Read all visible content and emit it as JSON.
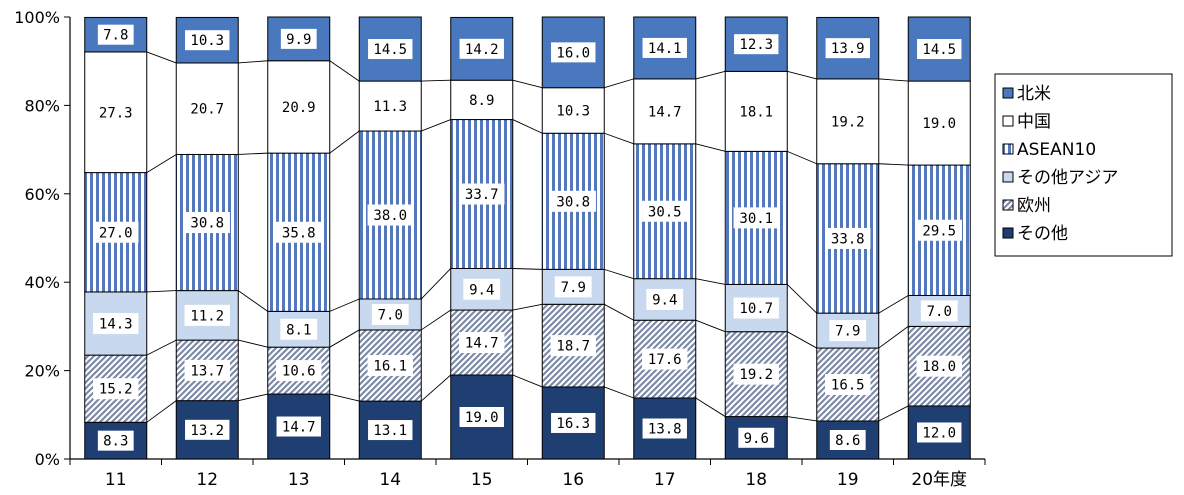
{
  "chart_data": {
    "type": "bar",
    "stacked": true,
    "percent": true,
    "categories": [
      "11",
      "12",
      "13",
      "14",
      "15",
      "16",
      "17",
      "18",
      "19",
      "20年度"
    ],
    "series": [
      {
        "name": "その他",
        "values": [
          8.3,
          13.2,
          14.7,
          13.1,
          19.0,
          16.3,
          13.8,
          9.6,
          8.6,
          12.0
        ],
        "labels": [
          "8.3",
          "13.2",
          "14.7",
          "13.1",
          "19.0",
          "16.3",
          "13.8",
          "9.6",
          "8.6",
          "12.0"
        ],
        "color": "#1f3f73",
        "pattern": "solid"
      },
      {
        "name": "欧州",
        "values": [
          15.2,
          13.7,
          10.6,
          16.1,
          14.7,
          18.7,
          17.6,
          19.2,
          16.5,
          18.0
        ],
        "labels": [
          "15.2",
          "13.7",
          "10.6",
          "16.1",
          "14.7",
          "18.7",
          "17.6",
          "19.2",
          "16.5",
          "18.0"
        ],
        "color": "#9aa6bd",
        "pattern": "diagonal"
      },
      {
        "name": "その他アジア",
        "values": [
          14.3,
          11.2,
          8.1,
          7.0,
          9.4,
          7.9,
          9.4,
          10.7,
          7.9,
          7.0
        ],
        "labels": [
          "14.3",
          "11.2",
          "8.1",
          "7.0",
          "9.4",
          "7.9",
          "9.4",
          "10.7",
          "7.9",
          "7.0"
        ],
        "color": "#c8d8ee",
        "pattern": "solid"
      },
      {
        "name": "ASEAN10",
        "values": [
          27.0,
          30.8,
          35.8,
          38.0,
          33.7,
          30.8,
          30.5,
          30.1,
          33.8,
          29.5
        ],
        "labels": [
          "27.0",
          "30.8",
          "35.8",
          "38.0",
          "33.7",
          "30.8",
          "30.5",
          "30.1",
          "33.8",
          "29.5"
        ],
        "color": "#5577bb",
        "pattern": "vertical"
      },
      {
        "name": "中国",
        "values": [
          27.3,
          20.7,
          20.9,
          11.3,
          8.9,
          10.3,
          14.7,
          18.1,
          19.2,
          19.0
        ],
        "labels": [
          "27.3",
          "20.7",
          "20.9",
          "11.3",
          "8.9",
          "10.3",
          "14.7",
          "18.1",
          "19.2",
          "19.0"
        ],
        "color": "#ffffff",
        "pattern": "solid"
      },
      {
        "name": "北米",
        "values": [
          7.8,
          10.3,
          9.9,
          14.5,
          14.2,
          16.0,
          14.1,
          12.3,
          13.9,
          14.5
        ],
        "labels": [
          "7.8",
          "10.3",
          "9.9",
          "14.5",
          "14.2",
          "16.0",
          "14.1",
          "12.3",
          "13.9",
          "14.5"
        ],
        "color": "#4a78be",
        "pattern": "solid"
      }
    ],
    "ylim": [
      0,
      100
    ],
    "yticks": [
      "0%",
      "20%",
      "40%",
      "60%",
      "80%",
      "100%"
    ],
    "legend": {
      "position": "right",
      "items": [
        "北米",
        "中国",
        "ASEAN10",
        "その他アジア",
        "欧州",
        "その他"
      ]
    },
    "connector_lines": true,
    "grid": false
  }
}
